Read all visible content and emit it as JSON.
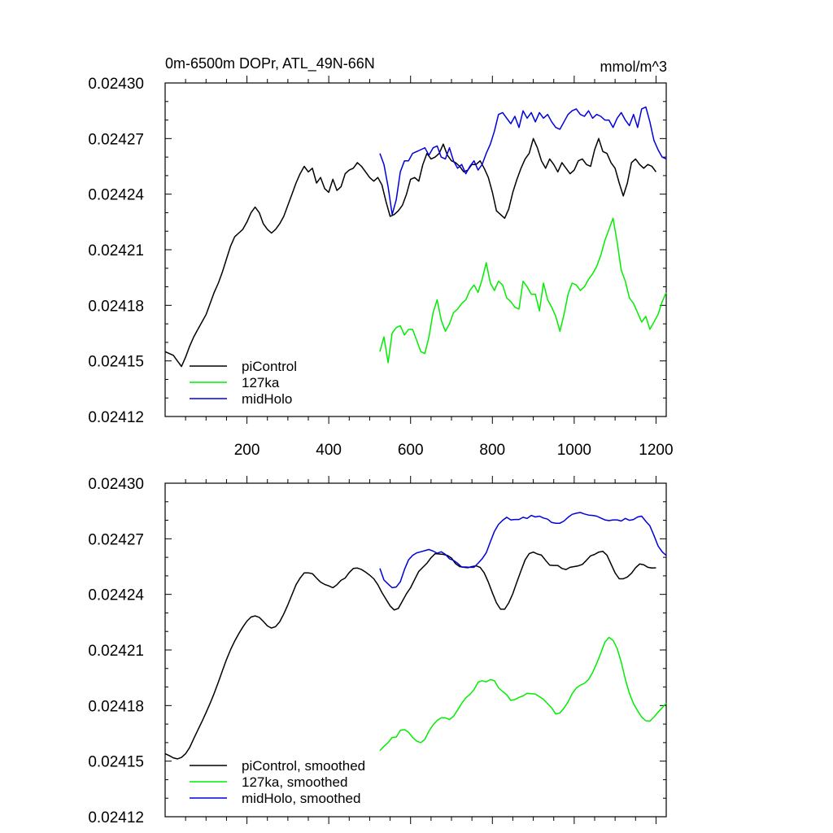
{
  "chart_data": [
    {
      "type": "line",
      "title": "0m-6500m DOPr, ATL_49N-66N",
      "units": "mmol/m^3",
      "xlim": [
        0,
        1225
      ],
      "ylim": [
        0.02412,
        0.0243
      ],
      "yticks": [
        0.02412,
        0.02415,
        0.02418,
        0.02421,
        0.02424,
        0.02427,
        0.0243
      ],
      "ytick_labels": [
        "0.02412",
        "0.02415",
        "0.02418",
        "0.02421",
        "0.02424",
        "0.02427",
        "0.02430"
      ],
      "xticks": [
        200,
        400,
        600,
        800,
        1000,
        1200
      ],
      "xtick_labels": [
        "200",
        "400",
        "600",
        "800",
        "1000",
        "1200"
      ],
      "legend_position": "bottom-left",
      "series": [
        {
          "name": "piControl",
          "color": "#000000",
          "x": [
            0,
            10,
            20,
            30,
            40,
            50,
            60,
            70,
            80,
            90,
            100,
            110,
            120,
            130,
            140,
            150,
            160,
            170,
            180,
            190,
            200,
            210,
            220,
            230,
            240,
            250,
            260,
            270,
            280,
            290,
            300,
            310,
            320,
            330,
            340,
            350,
            360,
            370,
            380,
            390,
            400,
            410,
            420,
            430,
            440,
            450,
            460,
            470,
            480,
            490,
            500,
            510,
            520,
            530,
            540,
            550,
            560,
            570,
            580,
            590,
            600,
            610,
            620,
            630,
            640,
            650,
            660,
            670,
            680,
            690,
            700,
            710,
            720,
            730,
            740,
            750,
            760,
            770,
            780,
            790,
            800,
            810,
            820,
            830,
            840,
            850,
            860,
            870,
            880,
            890,
            900,
            910,
            920,
            930,
            940,
            950,
            960,
            970,
            980,
            990,
            1000,
            1010,
            1020,
            1030,
            1040,
            1050,
            1060,
            1070,
            1080,
            1090,
            1100,
            1110,
            1120,
            1130,
            1140,
            1150,
            1160,
            1170,
            1180,
            1190,
            1200
          ],
          "y": [
            0.024155,
            0.024154,
            0.024153,
            0.02415,
            0.024147,
            0.024152,
            0.024158,
            0.024163,
            0.024167,
            0.024171,
            0.024175,
            0.024181,
            0.024187,
            0.024192,
            0.024198,
            0.024205,
            0.024212,
            0.024217,
            0.024219,
            0.024221,
            0.024225,
            0.02423,
            0.024233,
            0.02423,
            0.024224,
            0.024221,
            0.024219,
            0.024221,
            0.024224,
            0.024228,
            0.024234,
            0.02424,
            0.024246,
            0.024251,
            0.024255,
            0.024252,
            0.024254,
            0.024246,
            0.024249,
            0.024243,
            0.024241,
            0.024248,
            0.024242,
            0.024244,
            0.024251,
            0.024253,
            0.024254,
            0.024257,
            0.024255,
            0.024252,
            0.024249,
            0.024247,
            0.024249,
            0.024245,
            0.024236,
            0.024228,
            0.024229,
            0.024231,
            0.024234,
            0.02424,
            0.024248,
            0.024249,
            0.024247,
            0.024256,
            0.024262,
            0.024259,
            0.02426,
            0.024262,
            0.024267,
            0.024261,
            0.024258,
            0.024257,
            0.024255,
            0.024252,
            0.024253,
            0.024256,
            0.024256,
            0.024258,
            0.024254,
            0.024249,
            0.024241,
            0.024231,
            0.024229,
            0.024227,
            0.024232,
            0.024241,
            0.024248,
            0.024254,
            0.024259,
            0.024262,
            0.02427,
            0.024265,
            0.024258,
            0.024254,
            0.024259,
            0.024256,
            0.024252,
            0.024257,
            0.024254,
            0.024251,
            0.024253,
            0.024258,
            0.024259,
            0.024256,
            0.024255,
            0.024264,
            0.02427,
            0.024263,
            0.024262,
            0.024257,
            0.024254,
            0.024246,
            0.024239,
            0.024246,
            0.024257,
            0.024259,
            0.024256,
            0.024254,
            0.024256,
            0.024255,
            0.024252
          ]
        },
        {
          "name": "127ka",
          "color": "#00ee00",
          "x": [
            525,
            535,
            545,
            555,
            565,
            575,
            585,
            595,
            605,
            615,
            625,
            635,
            645,
            655,
            665,
            675,
            685,
            695,
            705,
            715,
            725,
            735,
            745,
            755,
            765,
            775,
            785,
            795,
            805,
            815,
            825,
            835,
            845,
            855,
            865,
            875,
            885,
            895,
            905,
            915,
            925,
            935,
            945,
            955,
            965,
            975,
            985,
            995,
            1005,
            1015,
            1025,
            1035,
            1045,
            1055,
            1065,
            1075,
            1085,
            1095,
            1105,
            1115,
            1125,
            1135,
            1145,
            1155,
            1165,
            1175,
            1185,
            1195,
            1205,
            1215,
            1225
          ],
          "y": [
            0.024155,
            0.024163,
            0.024149,
            0.024165,
            0.024168,
            0.024169,
            0.024164,
            0.024167,
            0.024167,
            0.024161,
            0.024155,
            0.024154,
            0.024163,
            0.024176,
            0.024183,
            0.024172,
            0.024166,
            0.02417,
            0.024176,
            0.024178,
            0.024181,
            0.024183,
            0.024188,
            0.024191,
            0.024187,
            0.024194,
            0.024203,
            0.024192,
            0.024188,
            0.024193,
            0.024191,
            0.024184,
            0.024182,
            0.024179,
            0.024178,
            0.024193,
            0.02419,
            0.024186,
            0.024186,
            0.024177,
            0.024192,
            0.024183,
            0.024179,
            0.024174,
            0.024166,
            0.024175,
            0.024186,
            0.024192,
            0.024191,
            0.024188,
            0.02419,
            0.024194,
            0.024197,
            0.024201,
            0.024207,
            0.024215,
            0.024221,
            0.024227,
            0.024214,
            0.024199,
            0.024193,
            0.024184,
            0.024181,
            0.024176,
            0.024171,
            0.024174,
            0.024167,
            0.024171,
            0.024175,
            0.024182,
            0.024187
          ]
        },
        {
          "name": "midHolo",
          "color": "#0000dd",
          "x": [
            525,
            535,
            545,
            555,
            565,
            575,
            585,
            595,
            605,
            615,
            625,
            635,
            645,
            655,
            665,
            675,
            685,
            695,
            705,
            715,
            725,
            735,
            745,
            755,
            765,
            775,
            785,
            795,
            805,
            815,
            825,
            835,
            845,
            855,
            865,
            875,
            885,
            895,
            905,
            915,
            925,
            935,
            945,
            955,
            965,
            975,
            985,
            995,
            1005,
            1015,
            1025,
            1035,
            1045,
            1055,
            1065,
            1075,
            1085,
            1095,
            1105,
            1115,
            1125,
            1135,
            1145,
            1155,
            1165,
            1175,
            1185,
            1195,
            1205,
            1215,
            1225
          ],
          "y": [
            0.024262,
            0.024256,
            0.024244,
            0.024229,
            0.024237,
            0.024252,
            0.024258,
            0.024258,
            0.024262,
            0.024263,
            0.024264,
            0.024265,
            0.024261,
            0.024265,
            0.024266,
            0.02426,
            0.024259,
            0.024265,
            0.024258,
            0.024254,
            0.024256,
            0.024251,
            0.024255,
            0.024258,
            0.024253,
            0.024256,
            0.024262,
            0.024267,
            0.024274,
            0.024283,
            0.024284,
            0.024281,
            0.024278,
            0.024282,
            0.024276,
            0.024285,
            0.024281,
            0.024284,
            0.024279,
            0.024284,
            0.024281,
            0.024283,
            0.024279,
            0.024276,
            0.024275,
            0.024279,
            0.024283,
            0.024285,
            0.024286,
            0.024283,
            0.024282,
            0.024285,
            0.024281,
            0.024283,
            0.024282,
            0.02428,
            0.02428,
            0.024276,
            0.024281,
            0.024284,
            0.02428,
            0.024277,
            0.024283,
            0.024276,
            0.024286,
            0.024287,
            0.024279,
            0.024269,
            0.024264,
            0.02426,
            0.024259
          ]
        }
      ]
    },
    {
      "type": "line",
      "xlim": [
        0,
        1225
      ],
      "ylim": [
        0.02412,
        0.0243
      ],
      "yticks": [
        0.02412,
        0.02415,
        0.02418,
        0.02421,
        0.02424,
        0.02427,
        0.0243
      ],
      "ytick_labels": [
        "0.02412",
        "0.02415",
        "0.02418",
        "0.02421",
        "0.02424",
        "0.02427",
        "0.02430"
      ],
      "xticks": [
        200,
        400,
        600,
        800,
        1000,
        1200
      ],
      "xtick_labels": [],
      "legend_position": "bottom-left",
      "smoothing_window": 5,
      "series": [
        {
          "name": "piControl, smoothed",
          "color": "#000000",
          "source": 0
        },
        {
          "name": "127ka, smoothed",
          "color": "#00ee00",
          "source": 1
        },
        {
          "name": "midHolo, smoothed",
          "color": "#0000dd",
          "source": 2
        }
      ]
    }
  ]
}
